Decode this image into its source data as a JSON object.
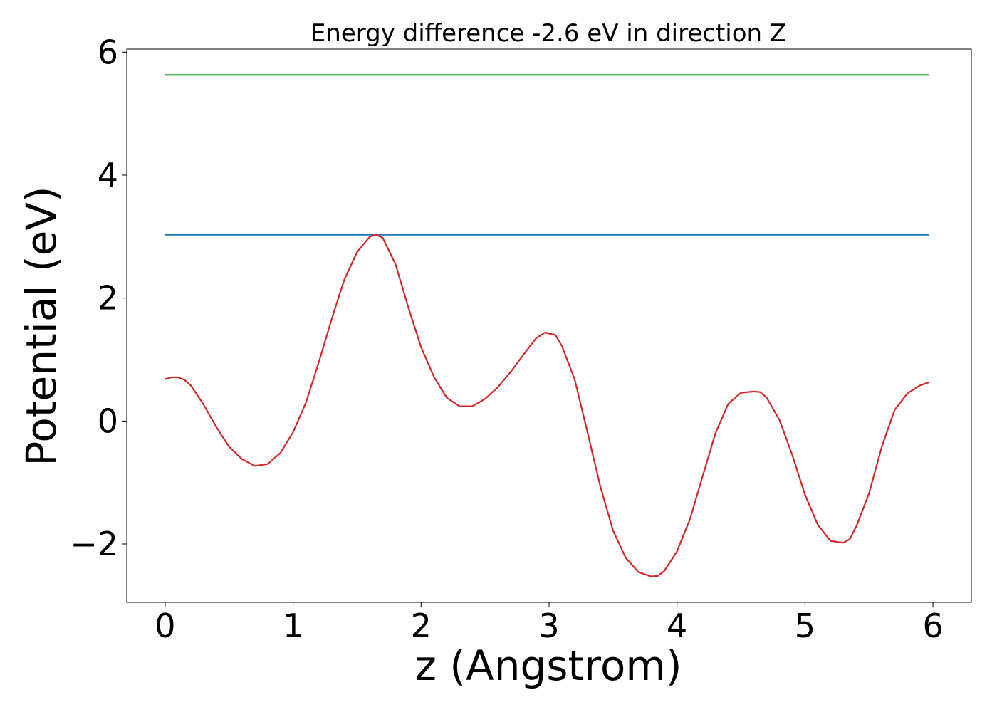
{
  "chart_data": {
    "type": "line",
    "title": "Energy difference -2.6 eV in direction Z",
    "xlabel": "z (Angstrom)",
    "ylabel": "Potential (eV)",
    "xlim": [
      -0.3,
      6.3
    ],
    "ylim": [
      -2.95,
      6.05
    ],
    "x_ticks": [
      0,
      1,
      2,
      3,
      4,
      5,
      6
    ],
    "x_tick_labels": [
      "0",
      "1",
      "2",
      "3",
      "4",
      "5",
      "6"
    ],
    "y_ticks": [
      -2,
      0,
      2,
      4,
      6
    ],
    "y_tick_labels": [
      "−2",
      "0",
      "2",
      "4",
      "6"
    ],
    "grid": false,
    "series": [
      {
        "color": "#2ca02c",
        "x": [
          0,
          5.97
        ],
        "y": [
          5.63,
          5.63
        ]
      },
      {
        "color": "#1f77b4",
        "x": [
          0,
          5.97
        ],
        "y": [
          3.03,
          3.03
        ]
      },
      {
        "color": "#d62728",
        "x": [
          0,
          0.05,
          0.1,
          0.15,
          0.2,
          0.3,
          0.4,
          0.5,
          0.6,
          0.7,
          0.8,
          0.9,
          1.0,
          1.1,
          1.2,
          1.3,
          1.4,
          1.5,
          1.6,
          1.65,
          1.7,
          1.8,
          1.9,
          2.0,
          2.1,
          2.2,
          2.3,
          2.4,
          2.5,
          2.6,
          2.7,
          2.8,
          2.9,
          2.97,
          3.05,
          3.1,
          3.2,
          3.3,
          3.4,
          3.5,
          3.6,
          3.7,
          3.8,
          3.85,
          3.9,
          4.0,
          4.1,
          4.2,
          4.3,
          4.4,
          4.5,
          4.6,
          4.65,
          4.7,
          4.8,
          4.9,
          5.0,
          5.1,
          5.2,
          5.3,
          5.35,
          5.4,
          5.5,
          5.6,
          5.7,
          5.8,
          5.9,
          5.97
        ],
        "y": [
          0.68,
          0.71,
          0.71,
          0.67,
          0.58,
          0.27,
          -0.1,
          -0.42,
          -0.62,
          -0.73,
          -0.7,
          -0.52,
          -0.18,
          0.3,
          0.95,
          1.65,
          2.3,
          2.75,
          3.0,
          3.03,
          2.98,
          2.55,
          1.85,
          1.2,
          0.72,
          0.38,
          0.24,
          0.24,
          0.36,
          0.55,
          0.8,
          1.08,
          1.35,
          1.44,
          1.4,
          1.22,
          0.68,
          -0.18,
          -1.06,
          -1.78,
          -2.23,
          -2.46,
          -2.53,
          -2.52,
          -2.44,
          -2.12,
          -1.6,
          -0.9,
          -0.2,
          0.28,
          0.46,
          0.48,
          0.47,
          0.38,
          0.02,
          -0.55,
          -1.2,
          -1.69,
          -1.95,
          -1.98,
          -1.92,
          -1.72,
          -1.18,
          -0.42,
          0.18,
          0.45,
          0.58,
          0.63
        ]
      }
    ]
  }
}
